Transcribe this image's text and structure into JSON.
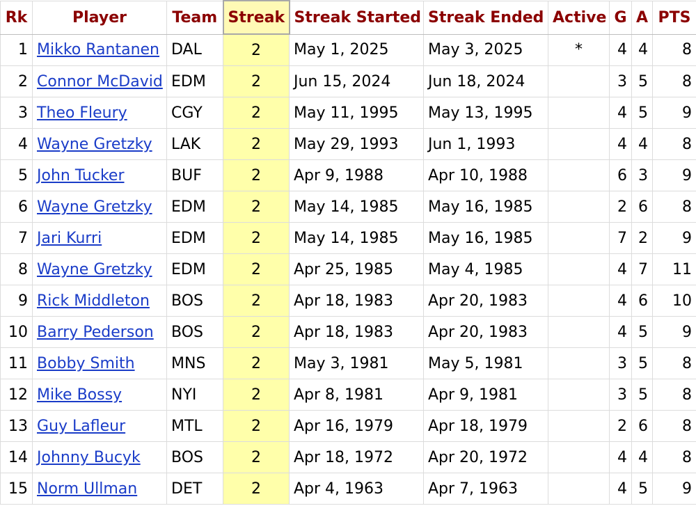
{
  "headers": {
    "rk": "Rk",
    "player": "Player",
    "team": "Team",
    "streak": "Streak",
    "started": "Streak Started",
    "ended": "Streak Ended",
    "active": "Active",
    "g": "G",
    "a": "A",
    "pts": "PTS"
  },
  "rows": [
    {
      "rk": "1",
      "player": "Mikko Rantanen",
      "team": "DAL",
      "streak": "2",
      "started": "May 1, 2025",
      "ended": "May 3, 2025",
      "active": "*",
      "g": "4",
      "a": "4",
      "pts": "8"
    },
    {
      "rk": "2",
      "player": "Connor McDavid",
      "team": "EDM",
      "streak": "2",
      "started": "Jun 15, 2024",
      "ended": "Jun 18, 2024",
      "active": "",
      "g": "3",
      "a": "5",
      "pts": "8"
    },
    {
      "rk": "3",
      "player": "Theo Fleury",
      "team": "CGY",
      "streak": "2",
      "started": "May 11, 1995",
      "ended": "May 13, 1995",
      "active": "",
      "g": "4",
      "a": "5",
      "pts": "9"
    },
    {
      "rk": "4",
      "player": "Wayne Gretzky",
      "team": "LAK",
      "streak": "2",
      "started": "May 29, 1993",
      "ended": "Jun 1, 1993",
      "active": "",
      "g": "4",
      "a": "4",
      "pts": "8"
    },
    {
      "rk": "5",
      "player": "John Tucker",
      "team": "BUF",
      "streak": "2",
      "started": "Apr 9, 1988",
      "ended": "Apr 10, 1988",
      "active": "",
      "g": "6",
      "a": "3",
      "pts": "9"
    },
    {
      "rk": "6",
      "player": "Wayne Gretzky",
      "team": "EDM",
      "streak": "2",
      "started": "May 14, 1985",
      "ended": "May 16, 1985",
      "active": "",
      "g": "2",
      "a": "6",
      "pts": "8"
    },
    {
      "rk": "7",
      "player": "Jari Kurri",
      "team": "EDM",
      "streak": "2",
      "started": "May 14, 1985",
      "ended": "May 16, 1985",
      "active": "",
      "g": "7",
      "a": "2",
      "pts": "9"
    },
    {
      "rk": "8",
      "player": "Wayne Gretzky",
      "team": "EDM",
      "streak": "2",
      "started": "Apr 25, 1985",
      "ended": "May 4, 1985",
      "active": "",
      "g": "4",
      "a": "7",
      "pts": "11"
    },
    {
      "rk": "9",
      "player": "Rick Middleton",
      "team": "BOS",
      "streak": "2",
      "started": "Apr 18, 1983",
      "ended": "Apr 20, 1983",
      "active": "",
      "g": "4",
      "a": "6",
      "pts": "10"
    },
    {
      "rk": "10",
      "player": "Barry Pederson",
      "team": "BOS",
      "streak": "2",
      "started": "Apr 18, 1983",
      "ended": "Apr 20, 1983",
      "active": "",
      "g": "4",
      "a": "5",
      "pts": "9"
    },
    {
      "rk": "11",
      "player": "Bobby Smith",
      "team": "MNS",
      "streak": "2",
      "started": "May 3, 1981",
      "ended": "May 5, 1981",
      "active": "",
      "g": "3",
      "a": "5",
      "pts": "8"
    },
    {
      "rk": "12",
      "player": "Mike Bossy",
      "team": "NYI",
      "streak": "2",
      "started": "Apr 8, 1981",
      "ended": "Apr 9, 1981",
      "active": "",
      "g": "3",
      "a": "5",
      "pts": "8"
    },
    {
      "rk": "13",
      "player": "Guy Lafleur",
      "team": "MTL",
      "streak": "2",
      "started": "Apr 16, 1979",
      "ended": "Apr 18, 1979",
      "active": "",
      "g": "2",
      "a": "6",
      "pts": "8"
    },
    {
      "rk": "14",
      "player": "Johnny Bucyk",
      "team": "BOS",
      "streak": "2",
      "started": "Apr 18, 1972",
      "ended": "Apr 20, 1972",
      "active": "",
      "g": "4",
      "a": "4",
      "pts": "8"
    },
    {
      "rk": "15",
      "player": "Norm Ullman",
      "team": "DET",
      "streak": "2",
      "started": "Apr 4, 1963",
      "ended": "Apr 7, 1963",
      "active": "",
      "g": "4",
      "a": "5",
      "pts": "9"
    }
  ],
  "colors": {
    "header_text": "#8b0000",
    "sorted_column": "#ffffaa",
    "link": "#1a3cc8"
  }
}
